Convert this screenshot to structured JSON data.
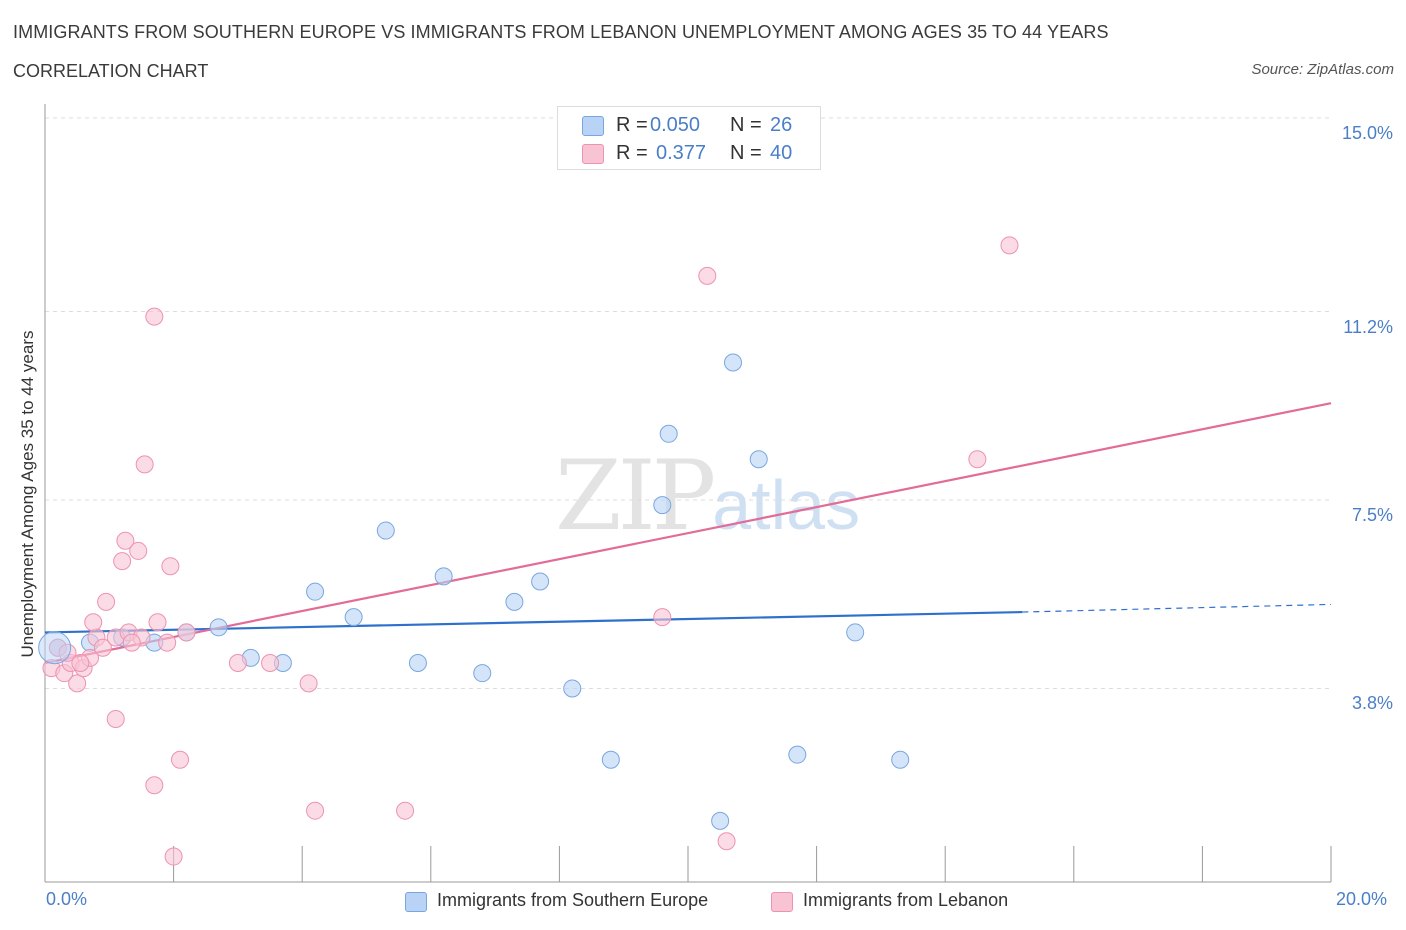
{
  "header": {
    "title": "IMMIGRANTS FROM SOUTHERN EUROPE VS IMMIGRANTS FROM LEBANON UNEMPLOYMENT AMONG AGES 35 TO 44 YEARS",
    "subtitle": "CORRELATION CHART",
    "source": "Source: ZipAtlas.com"
  },
  "watermark": {
    "zip": "ZIP",
    "atlas": "atlas"
  },
  "stats": {
    "r_label": "R =",
    "n_label": "N =",
    "blue": {
      "r": "0.050",
      "n": "26"
    },
    "pink": {
      "r": "0.377",
      "n": "40"
    }
  },
  "colors": {
    "blue_fill": "#b8d3f5",
    "blue_stroke": "#7aa6e0",
    "blue_line": "#2f70cc",
    "pink_fill": "#f8c3d3",
    "pink_stroke": "#ec93b0",
    "pink_line": "#e26b97",
    "axis_text": "#4a7fc8",
    "grid": "#dddddd"
  },
  "chart_data": {
    "type": "scatter",
    "title": "IMMIGRANTS FROM SOUTHERN EUROPE VS IMMIGRANTS FROM LEBANON UNEMPLOYMENT AMONG AGES 35 TO 44 YEARS",
    "xlabel": "",
    "ylabel": "Unemployment Among Ages 35 to 44 years",
    "xlim": [
      0,
      20
    ],
    "ylim": [
      0,
      15
    ],
    "x_tick_labels": [
      "0.0%",
      "20.0%"
    ],
    "y_ticks": [
      3.8,
      7.5,
      11.2,
      15.0
    ],
    "y_tick_labels": [
      "3.8%",
      "7.5%",
      "11.2%",
      "15.0%"
    ],
    "grid": true,
    "series": [
      {
        "name": "Immigrants from Southern Europe",
        "color": "blue",
        "r": 0.05,
        "n": 26,
        "trend": {
          "x0": 0,
          "y0": 4.9,
          "x1": 15.2,
          "y1": 5.3,
          "dash_to_x": 20,
          "dash_to_y": 5.45
        },
        "points": [
          [
            0.2,
            4.6
          ],
          [
            0.7,
            4.7
          ],
          [
            1.2,
            4.8
          ],
          [
            1.7,
            4.7
          ],
          [
            2.2,
            4.9
          ],
          [
            2.7,
            5.0
          ],
          [
            3.2,
            4.4
          ],
          [
            3.7,
            4.3
          ],
          [
            4.2,
            5.7
          ],
          [
            4.8,
            5.2
          ],
          [
            5.3,
            6.9
          ],
          [
            5.8,
            4.3
          ],
          [
            6.2,
            6.0
          ],
          [
            6.8,
            4.1
          ],
          [
            7.3,
            5.5
          ],
          [
            7.7,
            5.9
          ],
          [
            8.2,
            3.8
          ],
          [
            8.8,
            2.4
          ],
          [
            9.6,
            7.4
          ],
          [
            9.7,
            8.8
          ],
          [
            10.5,
            1.2
          ],
          [
            10.7,
            10.2
          ],
          [
            11.1,
            8.3
          ],
          [
            11.7,
            2.5
          ],
          [
            12.6,
            4.9
          ],
          [
            13.3,
            2.4
          ]
        ]
      },
      {
        "name": "Immigrants from Lebanon",
        "color": "pink",
        "r": 0.377,
        "n": 40,
        "trend": {
          "x0": 0,
          "y0": 4.3,
          "x1": 20,
          "y1": 9.4
        },
        "points": [
          [
            0.1,
            4.2
          ],
          [
            0.2,
            4.6
          ],
          [
            0.3,
            4.1
          ],
          [
            0.4,
            4.3
          ],
          [
            0.5,
            3.9
          ],
          [
            0.6,
            4.2
          ],
          [
            0.7,
            4.4
          ],
          [
            0.8,
            4.8
          ],
          [
            0.75,
            5.1
          ],
          [
            0.9,
            4.6
          ],
          [
            0.95,
            5.5
          ],
          [
            1.1,
            4.8
          ],
          [
            1.1,
            3.2
          ],
          [
            1.2,
            6.3
          ],
          [
            1.25,
            6.7
          ],
          [
            1.3,
            4.9
          ],
          [
            1.45,
            6.5
          ],
          [
            1.5,
            4.8
          ],
          [
            1.55,
            8.2
          ],
          [
            1.7,
            1.9
          ],
          [
            1.7,
            11.1
          ],
          [
            1.75,
            5.1
          ],
          [
            1.9,
            4.7
          ],
          [
            1.95,
            6.2
          ],
          [
            2.0,
            0.5
          ],
          [
            2.1,
            2.4
          ],
          [
            2.2,
            4.9
          ],
          [
            3.0,
            4.3
          ],
          [
            3.5,
            4.3
          ],
          [
            4.1,
            3.9
          ],
          [
            4.2,
            1.4
          ],
          [
            5.6,
            1.4
          ],
          [
            9.6,
            5.2
          ],
          [
            10.3,
            11.9
          ],
          [
            10.6,
            0.8
          ],
          [
            14.5,
            8.3
          ],
          [
            15.0,
            12.5
          ],
          [
            0.35,
            4.5
          ],
          [
            0.55,
            4.3
          ],
          [
            1.35,
            4.7
          ]
        ]
      }
    ],
    "legend": [
      "Immigrants from Southern Europe",
      "Immigrants from Lebanon"
    ],
    "legend_position": "bottom-center",
    "stats_box_position": "top-center"
  }
}
